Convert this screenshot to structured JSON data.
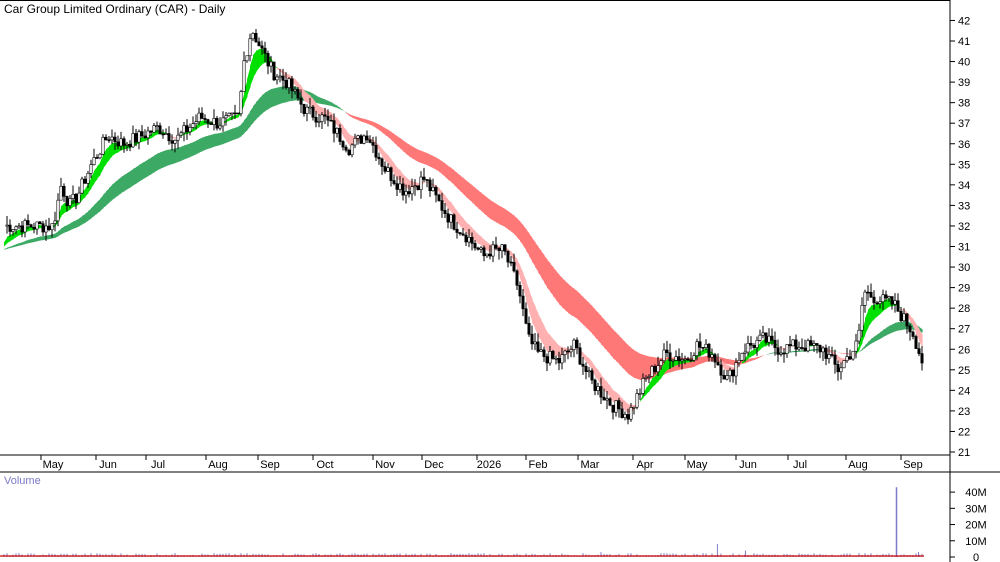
{
  "chart_data": {
    "type": "candlestick",
    "title": "Car Group Limited Ordinary (CAR) - Daily",
    "x_tick_labels": [
      "May",
      "Jun",
      "Jul",
      "Aug",
      "Sep",
      "Oct",
      "Nov",
      "Dec",
      "2026",
      "Feb",
      "Mar",
      "Apr",
      "May",
      "Jun",
      "Jul",
      "Aug",
      "Sep"
    ],
    "y_tick_labels": [
      "21",
      "22",
      "23",
      "24",
      "25",
      "26",
      "27",
      "28",
      "29",
      "30",
      "31",
      "32",
      "33",
      "34",
      "35",
      "36",
      "37",
      "38",
      "39",
      "40",
      "41",
      "42"
    ],
    "ylim": [
      21,
      42
    ],
    "price_path": [
      [
        0,
        32
      ],
      [
        0.15,
        34
      ],
      [
        0.3,
        33
      ],
      [
        0.45,
        33.5
      ],
      [
        0.7,
        35
      ],
      [
        1.0,
        36.4
      ],
      [
        1.3,
        36
      ],
      [
        1.6,
        36.3
      ],
      [
        2.0,
        36.8
      ],
      [
        2.3,
        36.2
      ],
      [
        2.7,
        37.3
      ],
      [
        3.0,
        37
      ],
      [
        3.4,
        37.3
      ],
      [
        3.5,
        40
      ],
      [
        3.65,
        41.6
      ],
      [
        3.85,
        40.5
      ],
      [
        4.05,
        39.5
      ],
      [
        4.3,
        39
      ],
      [
        4.65,
        37.6
      ],
      [
        5.0,
        37.2
      ],
      [
        5.15,
        36.7
      ],
      [
        5.4,
        35.8
      ],
      [
        5.7,
        36.5
      ],
      [
        6.0,
        34.8
      ],
      [
        6.4,
        33.7
      ],
      [
        6.8,
        34.3
      ],
      [
        7.3,
        32.3
      ],
      [
        7.6,
        31.5
      ],
      [
        7.9,
        30.5
      ],
      [
        8.0,
        30.8
      ],
      [
        8.3,
        30.8
      ],
      [
        8.6,
        29
      ],
      [
        8.8,
        26.5
      ],
      [
        9.0,
        25.8
      ],
      [
        9.4,
        25.4
      ],
      [
        9.7,
        26.2
      ],
      [
        10.0,
        24.5
      ],
      [
        10.4,
        23.3
      ],
      [
        10.7,
        22.8
      ],
      [
        11.0,
        24.5
      ],
      [
        11.4,
        25.8
      ],
      [
        11.8,
        25.5
      ],
      [
        12.0,
        26.2
      ],
      [
        12.3,
        25.8
      ],
      [
        12.6,
        24.5
      ],
      [
        12.9,
        26
      ],
      [
        13.3,
        26.5
      ],
      [
        13.6,
        26
      ],
      [
        14.0,
        26.2
      ],
      [
        14.4,
        26
      ],
      [
        14.65,
        25
      ],
      [
        15.0,
        26.3
      ],
      [
        15.1,
        28.8
      ],
      [
        15.4,
        28.4
      ],
      [
        15.65,
        28.2
      ],
      [
        16.0,
        26.8
      ],
      [
        16.3,
        24.3
      ]
    ],
    "volume": {
      "label": "Volume",
      "y_tick_labels": [
        "0",
        "10M",
        "20M",
        "30M",
        "40M"
      ],
      "ylim": [
        0,
        45
      ],
      "spike_month_index": 15.7,
      "spike_value": 43
    }
  },
  "colors": {
    "up_band": "#00e000",
    "down_band": "#ff6a00",
    "long_down": "#ff7878",
    "long_up": "#3caa64",
    "short_down": "#ffb0b0",
    "candle": "#000000",
    "volume_bar": "#7b7bc8",
    "volume_base": "#cc0000"
  }
}
